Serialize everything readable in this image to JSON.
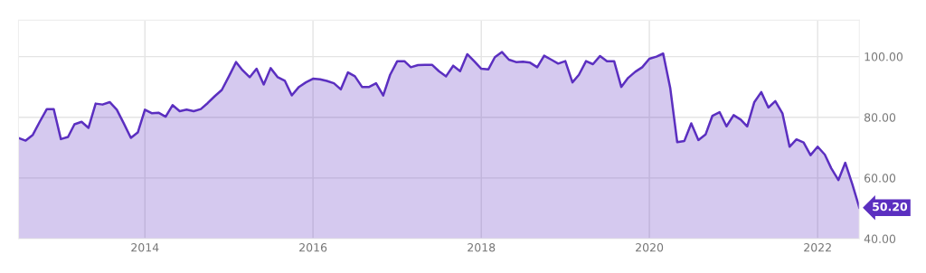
{
  "chart_data": {
    "type": "area",
    "x": [
      "2012-07",
      "2012-08",
      "2012-09",
      "2012-10",
      "2012-11",
      "2012-12",
      "2013-01",
      "2013-02",
      "2013-03",
      "2013-04",
      "2013-05",
      "2013-06",
      "2013-07",
      "2013-08",
      "2013-09",
      "2013-10",
      "2013-11",
      "2013-12",
      "2014-01",
      "2014-02",
      "2014-03",
      "2014-04",
      "2014-05",
      "2014-06",
      "2014-07",
      "2014-08",
      "2014-09",
      "2014-10",
      "2014-11",
      "2014-12",
      "2015-01",
      "2015-02",
      "2015-03",
      "2015-04",
      "2015-05",
      "2015-06",
      "2015-07",
      "2015-08",
      "2015-09",
      "2015-10",
      "2015-11",
      "2015-12",
      "2016-01",
      "2016-02",
      "2016-03",
      "2016-04",
      "2016-05",
      "2016-06",
      "2016-07",
      "2016-08",
      "2016-09",
      "2016-10",
      "2016-11",
      "2016-12",
      "2017-01",
      "2017-02",
      "2017-03",
      "2017-04",
      "2017-05",
      "2017-06",
      "2017-07",
      "2017-08",
      "2017-09",
      "2017-10",
      "2017-11",
      "2017-12",
      "2018-01",
      "2018-02",
      "2018-03",
      "2018-04",
      "2018-05",
      "2018-06",
      "2018-07",
      "2018-08",
      "2018-09",
      "2018-10",
      "2018-11",
      "2018-12",
      "2019-01",
      "2019-02",
      "2019-03",
      "2019-04",
      "2019-05",
      "2019-06",
      "2019-07",
      "2019-08",
      "2019-09",
      "2019-10",
      "2019-11",
      "2019-12",
      "2020-01",
      "2020-02",
      "2020-03",
      "2020-04",
      "2020-05",
      "2020-06",
      "2020-07",
      "2020-08",
      "2020-09",
      "2020-10",
      "2020-11",
      "2020-12",
      "2021-01",
      "2021-02",
      "2021-03",
      "2021-04",
      "2021-05",
      "2021-06",
      "2021-07",
      "2021-08",
      "2021-09",
      "2021-10",
      "2021-11",
      "2021-12",
      "2022-01",
      "2022-02",
      "2022-03",
      "2022-04",
      "2022-05",
      "2022-06",
      "2022-07"
    ],
    "series": [
      {
        "color": "#5b2fc0",
        "values": [
          73.2,
          72.3,
          74.2,
          78.5,
          82.7,
          82.7,
          72.8,
          73.5,
          77.7,
          78.5,
          76.5,
          84.5,
          84.2,
          85,
          82.5,
          78,
          73.2,
          75,
          82.5,
          81.3,
          81.5,
          80.2,
          84,
          82,
          82.5,
          82,
          82.7,
          84.7,
          87,
          89,
          93.5,
          98.2,
          95.5,
          93.2,
          96,
          90.8,
          96.2,
          93.2,
          92,
          87.2,
          90,
          91.5,
          92.7,
          92.5,
          92,
          91.2,
          89.2,
          94.8,
          93.5,
          90,
          90,
          91.2,
          87.2,
          94,
          98.5,
          98.5,
          96.5,
          97.2,
          97.3,
          97.3,
          95.2,
          93.5,
          97,
          95.2,
          100.8,
          98.5,
          96,
          95.8,
          99.8,
          101.5,
          99,
          98.2,
          98.3,
          98,
          96.5,
          100.3,
          99,
          97.7,
          98.5,
          91.5,
          94,
          98.5,
          97.5,
          100.2,
          98.5,
          98.5,
          90,
          93,
          95,
          96.5,
          99.3,
          100,
          101,
          89.5,
          71.8,
          72.2,
          78,
          72.5,
          74.3,
          80.5,
          81.7,
          77,
          80.7,
          79.2,
          77,
          85,
          88.3,
          83.2,
          85.3,
          81.3,
          70.3,
          72.7,
          71.7,
          67.5,
          70.3,
          67.7,
          63.2,
          59.3,
          65,
          57.8,
          50.2
        ]
      }
    ],
    "xlim": [
      "2012-07",
      "2022-07"
    ],
    "xticks": [
      "2014",
      "2016",
      "2018",
      "2020",
      "2022"
    ],
    "ylim": [
      40,
      112
    ],
    "yticks": [
      {
        "value": 40,
        "label": "40.00"
      },
      {
        "value": 60,
        "label": "60.00"
      },
      {
        "value": 80,
        "label": "80.00"
      },
      {
        "value": 100,
        "label": "100.00"
      }
    ],
    "annotations": [
      {
        "text": "50.20",
        "x": "2022-07",
        "y": 50.2
      }
    ],
    "grid": true,
    "legend": false
  }
}
